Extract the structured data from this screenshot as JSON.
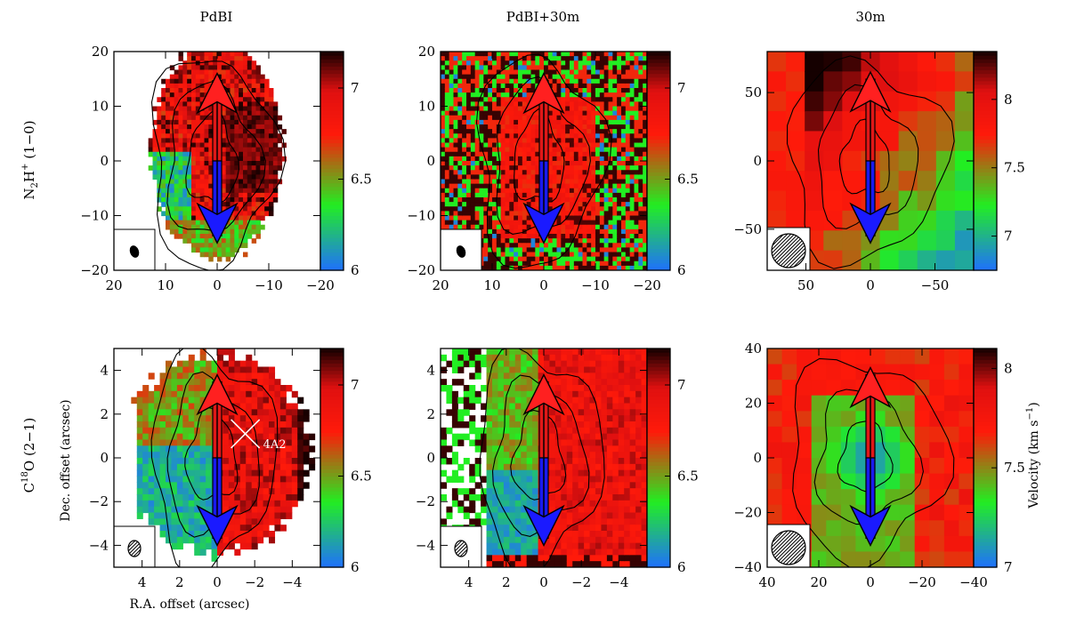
{
  "figure": {
    "column_titles": [
      "PdBI",
      "PdBI+30m",
      "30m"
    ],
    "row_labels": [
      {
        "base": "N",
        "sub": "2",
        "base2": "H",
        "sup": "+",
        "rest": " (1−0)"
      },
      {
        "pre": "C",
        "sup": "18",
        "rest": "O (2−1)"
      }
    ],
    "x_axis_label": "R.A. offset (arcsec)",
    "y_axis_label": "Dec. offset (arcsec)",
    "colorbar_label": "Velocity (km s",
    "colorbar_label_sup": "−1",
    "colorbar_label_end": ")",
    "annotation": "4A2"
  },
  "colors": {
    "blue": "#1f6fff",
    "green": "#22ee22",
    "red": "#ff1a0a",
    "dark": "#150000",
    "arrow_red": "#ff2020",
    "arrow_blue": "#1a1aff"
  },
  "chart_data": [
    {
      "type": "heatmap",
      "panel": "N2H+ PdBI",
      "xlim": [
        20,
        -20
      ],
      "ylim": [
        -20,
        20
      ],
      "xticks": [
        20,
        10,
        0,
        -10,
        -20
      ],
      "yticks": [
        -20,
        -10,
        0,
        10,
        20
      ],
      "colorbar": {
        "range": [
          6,
          7.2
        ],
        "ticks": [
          6,
          6.5,
          7
        ]
      },
      "beam": "small-filled",
      "map": "n2h_pdbi",
      "outflow_axis": {
        "x": 0,
        "from": -15,
        "to": 16
      }
    },
    {
      "type": "heatmap",
      "panel": "N2H+ PdBI+30m",
      "xlim": [
        20,
        -20
      ],
      "ylim": [
        -20,
        20
      ],
      "xticks": [
        20,
        10,
        0,
        -10,
        -20
      ],
      "yticks": [
        -20,
        -10,
        0,
        10,
        20
      ],
      "colorbar": {
        "range": [
          6,
          7.2
        ],
        "ticks": [
          6,
          6.5,
          7
        ]
      },
      "beam": "small-filled",
      "map": "n2h_comb",
      "outflow_axis": {
        "x": 0,
        "from": -15,
        "to": 16
      }
    },
    {
      "type": "heatmap",
      "panel": "N2H+ 30m",
      "xlim": [
        80,
        -80
      ],
      "ylim": [
        -80,
        80
      ],
      "xticks": [
        50,
        0,
        -50
      ],
      "yticks": [
        -50,
        0,
        50
      ],
      "colorbar": {
        "range": [
          6.75,
          8.35
        ],
        "ticks": [
          7,
          7.5,
          8
        ]
      },
      "beam": "large-hatched",
      "map": "n2h_30m",
      "outflow_axis": {
        "x": 0,
        "from": -60,
        "to": 65
      }
    },
    {
      "type": "heatmap",
      "panel": "C18O PdBI",
      "xlim": [
        5.5,
        -5.5
      ],
      "ylim": [
        -5,
        5
      ],
      "xticks": [
        4,
        2,
        0,
        -2,
        -4
      ],
      "yticks": [
        -4,
        -2,
        0,
        2,
        4
      ],
      "colorbar": {
        "range": [
          6,
          7.2
        ],
        "ticks": [
          6,
          6.5,
          7
        ]
      },
      "beam": "small-hatched",
      "map": "c18o_pdbi",
      "outflow_axis": {
        "x": 0,
        "from": -4,
        "to": 3.8
      },
      "marker": {
        "x": -1.5,
        "y": 1.1,
        "label": "4A2"
      }
    },
    {
      "type": "heatmap",
      "panel": "C18O PdBI+30m",
      "xlim": [
        5.5,
        -5.5
      ],
      "ylim": [
        -5,
        5
      ],
      "xticks": [
        4,
        2,
        0,
        -2,
        -4
      ],
      "yticks": [
        -4,
        -2,
        0,
        2,
        4
      ],
      "colorbar": {
        "range": [
          6,
          7.2
        ],
        "ticks": [
          6,
          6.5,
          7
        ]
      },
      "beam": "small-hatched",
      "map": "c18o_comb",
      "outflow_axis": {
        "x": 0,
        "from": -4,
        "to": 3.8
      }
    },
    {
      "type": "heatmap",
      "panel": "C18O 30m",
      "xlim": [
        40,
        -40
      ],
      "ylim": [
        -40,
        40
      ],
      "xticks": [
        40,
        20,
        0,
        -20,
        -40
      ],
      "yticks": [
        -40,
        -20,
        0,
        20,
        40
      ],
      "colorbar": {
        "range": [
          7,
          8.1
        ],
        "ticks": [
          7,
          7.5,
          8
        ]
      },
      "beam": "large-hatched",
      "map": "c18o_30m",
      "outflow_axis": {
        "x": 0,
        "from": -32,
        "to": 33
      }
    }
  ]
}
